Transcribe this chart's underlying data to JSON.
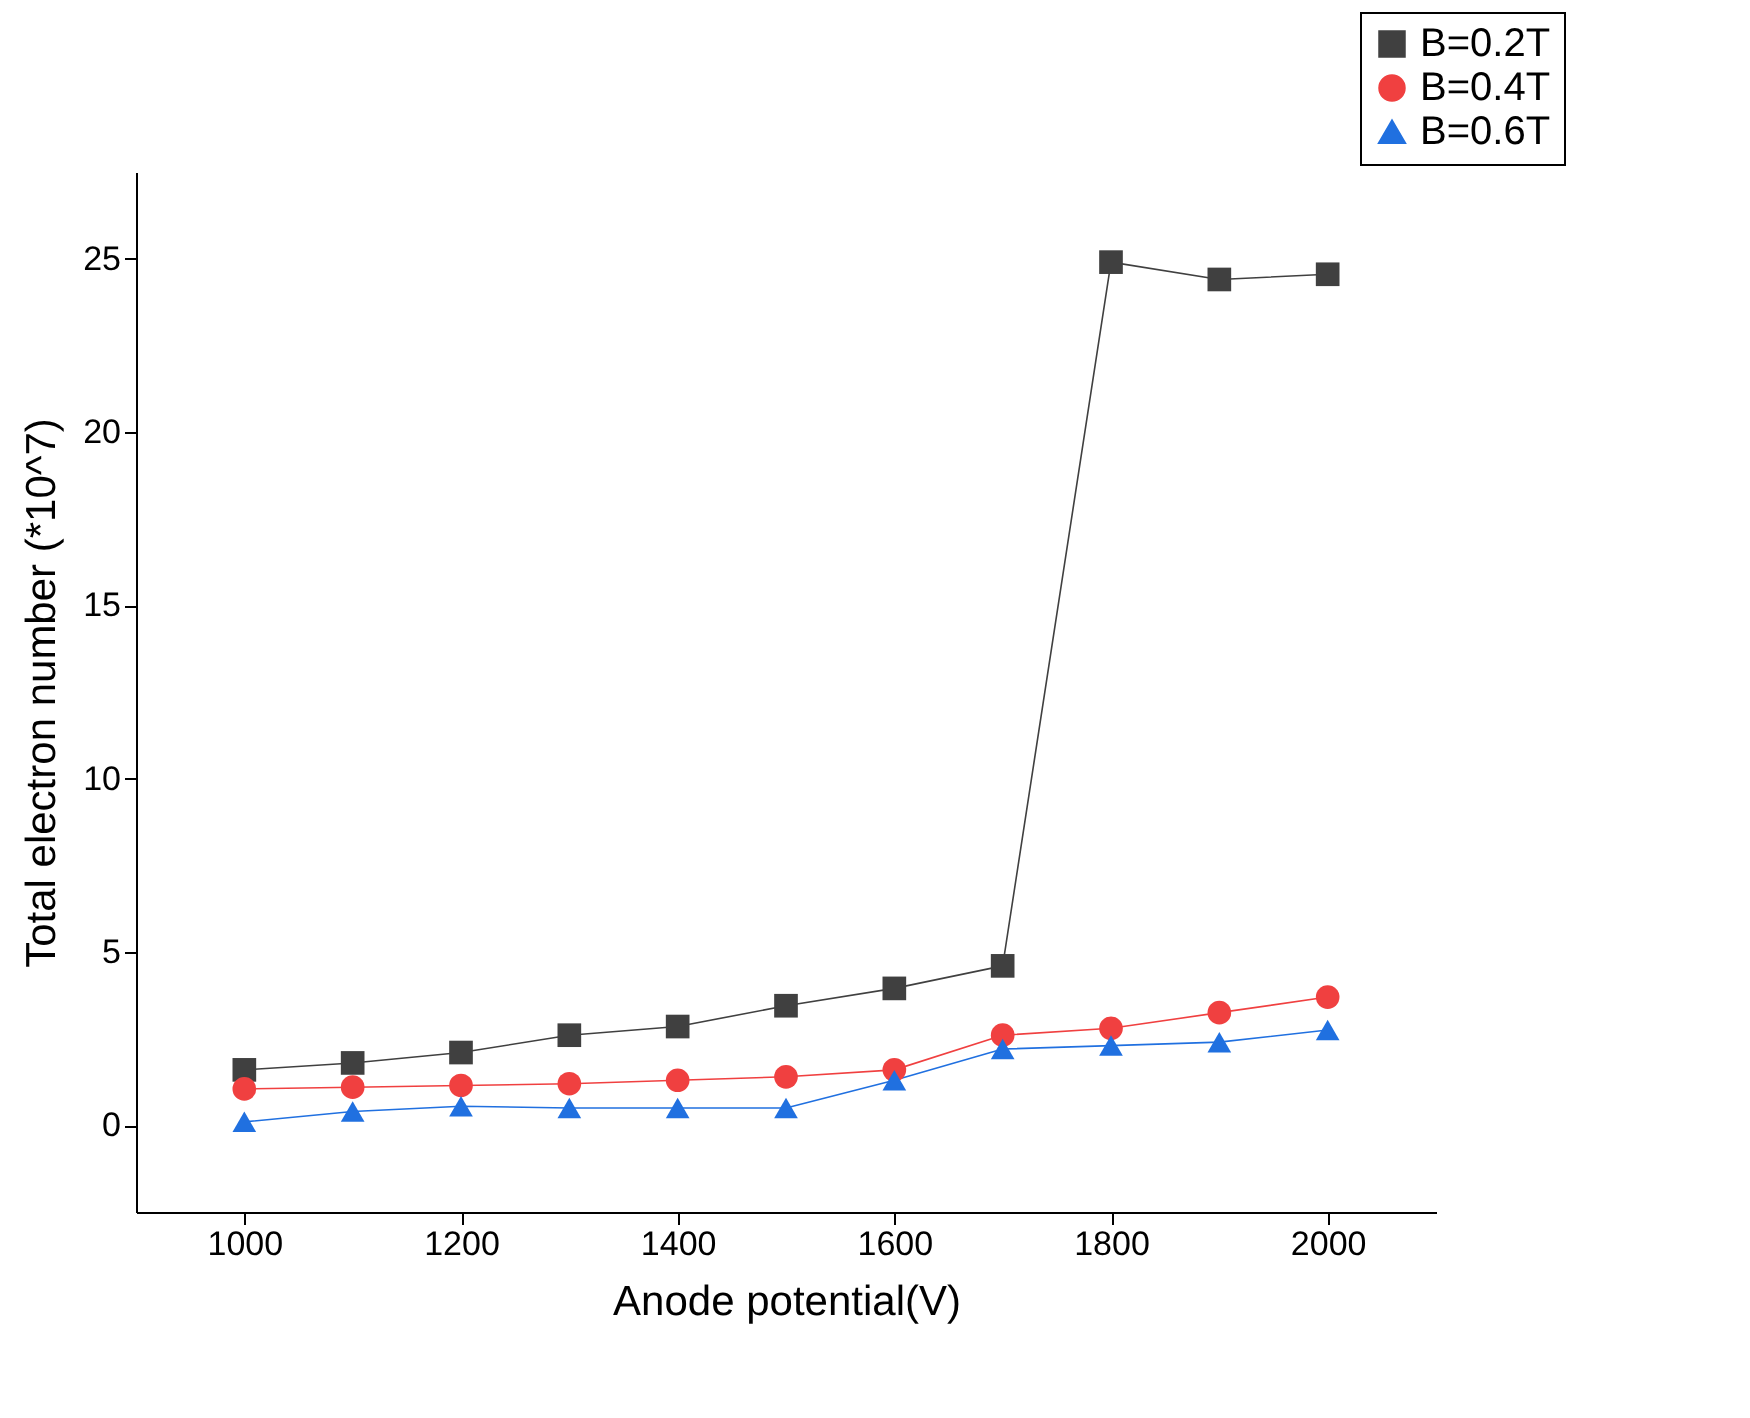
{
  "chart_data": {
    "type": "line",
    "xlabel": "Anode potential(V)",
    "ylabel": "Total electron number (*10^7)",
    "x": [
      1000,
      1100,
      1200,
      1300,
      1400,
      1500,
      1600,
      1700,
      1800,
      1900,
      2000
    ],
    "series": [
      {
        "name": "B=0.2T",
        "color": "#404040",
        "marker": "square",
        "values": [
          1.6,
          1.8,
          2.1,
          2.6,
          2.85,
          3.45,
          3.95,
          4.6,
          24.9,
          24.4,
          24.55
        ]
      },
      {
        "name": "B=0.4T",
        "color": "#f04040",
        "marker": "circle",
        "values": [
          1.05,
          1.1,
          1.15,
          1.2,
          1.3,
          1.4,
          1.6,
          2.6,
          2.8,
          3.25,
          3.7
        ]
      },
      {
        "name": "B=0.6T",
        "color": "#2070e0",
        "marker": "triangle",
        "values": [
          0.1,
          0.4,
          0.55,
          0.5,
          0.5,
          0.5,
          1.3,
          2.2,
          2.3,
          2.4,
          2.75
        ]
      }
    ],
    "xlim": [
      900,
      2100
    ],
    "xticks": [
      1000,
      1200,
      1400,
      1600,
      1800,
      2000
    ],
    "ylim": [
      -2.5,
      27.5
    ],
    "yticks": [
      0,
      5,
      10,
      15,
      20,
      25
    ],
    "grid": false,
    "legend": "top right",
    "line_style": "solid"
  }
}
